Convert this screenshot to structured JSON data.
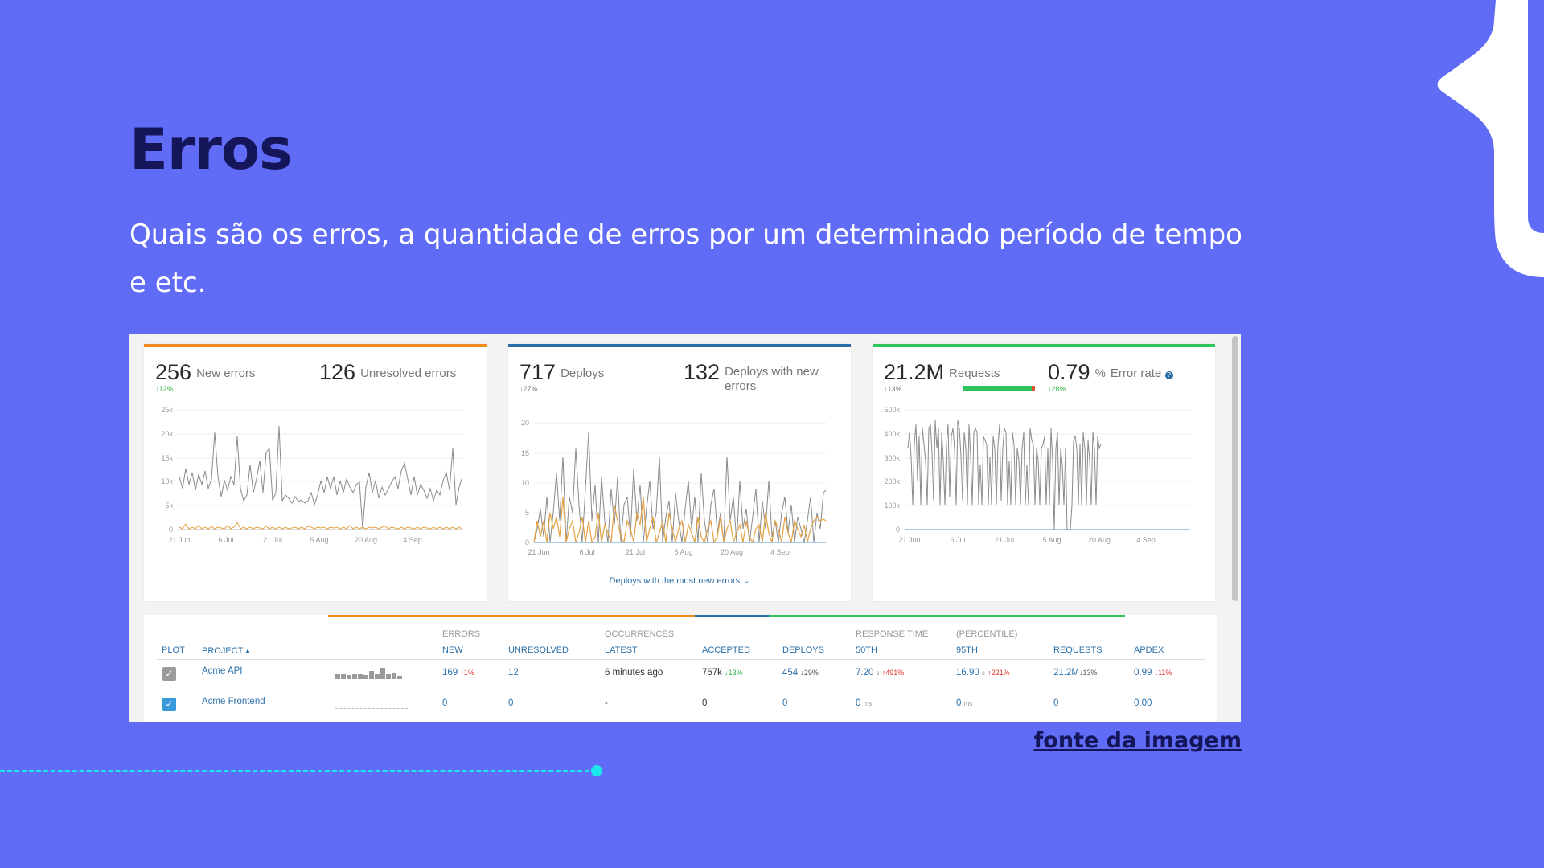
{
  "slide": {
    "title": "Erros",
    "subtitle": "Quais são os erros, a quantidade de erros por um determinado período de tempo e etc.",
    "source_link": "fonte da imagem"
  },
  "colors": {
    "background": "#606cf5",
    "title": "#151659",
    "accent_cyan": "#1de6ea",
    "panel_orange": "#f28a1e",
    "panel_blue": "#2a6fa8",
    "panel_green": "#2fc45b"
  },
  "dashboard": {
    "panels": [
      {
        "metric1_value": "256",
        "metric1_label": "New errors",
        "metric1_delta": "↓12%",
        "metric2_value": "126",
        "metric2_label": "Unresolved errors",
        "y_ticks": [
          "25k",
          "20k",
          "15k",
          "10k",
          "5k",
          "0"
        ],
        "x_ticks": [
          "21 Jun",
          "6 Jul",
          "21 Jul",
          "5 Aug",
          "20 Aug",
          "4 Sep"
        ]
      },
      {
        "metric1_value": "717",
        "metric1_label": "Deploys",
        "metric1_delta": "↓27%",
        "metric2_value": "132",
        "metric2_label_line1": "Deploys with new",
        "metric2_label_line2": "errors",
        "y_ticks": [
          "20",
          "15",
          "10",
          "5",
          "0"
        ],
        "x_ticks": [
          "21 Jun",
          "6 Jul",
          "21 Jul",
          "5 Aug",
          "20 Aug",
          "4 Sep"
        ],
        "link": "Deploys with the most new errors ⌄"
      },
      {
        "metric1_value": "21.2M",
        "metric1_label": "Requests",
        "metric1_delta": "↓13%",
        "metric2_value": "0.79",
        "metric2_unit": "%",
        "metric2_label": "Error rate",
        "metric2_delta": "↓28%",
        "y_ticks": [
          "500k",
          "400k",
          "300k",
          "200k",
          "100k",
          "0"
        ],
        "x_ticks": [
          "21 Jun",
          "6 Jul",
          "21 Jul",
          "5 Aug",
          "20 Aug",
          "4 Sep"
        ]
      }
    ],
    "table": {
      "group_headers": {
        "errors": "ERRORS",
        "occurrences": "OCCURRENCES",
        "response_time": "RESPONSE TIME",
        "percentile": "(PERCENTILE)"
      },
      "columns": {
        "plot": "PLOT",
        "project": "PROJECT ▴",
        "new": "NEW",
        "unresolved": "UNRESOLVED",
        "latest": "LATEST",
        "accepted": "ACCEPTED",
        "deploys": "DEPLOYS",
        "p50": "50TH",
        "p95": "95TH",
        "requests": "REQUESTS",
        "apdex": "APDEX"
      },
      "rows": [
        {
          "checked": true,
          "project": "Acme API",
          "new": "169",
          "new_delta": "↑1%",
          "unresolved": "12",
          "latest": "6 minutes ago",
          "accepted": "767k",
          "accepted_delta": "↓13%",
          "deploys": "454",
          "deploys_delta": "↓29%",
          "p50": "7.20",
          "p50_unit": "s",
          "p50_delta": "↑491%",
          "p95": "16.90",
          "p95_unit": "s",
          "p95_delta": "↑221%",
          "requests": "21.2M",
          "requests_delta": "↓13%",
          "apdex": "0.99",
          "apdex_delta": "↓11%"
        },
        {
          "checked": true,
          "project": "Acme Frontend",
          "new": "0",
          "unresolved": "0",
          "latest": "-",
          "accepted": "0",
          "deploys": "0",
          "p50": "0",
          "p50_unit": "ms",
          "p95": "0",
          "p95_unit": "ms",
          "requests": "0",
          "apdex": "0.00"
        }
      ]
    }
  }
}
